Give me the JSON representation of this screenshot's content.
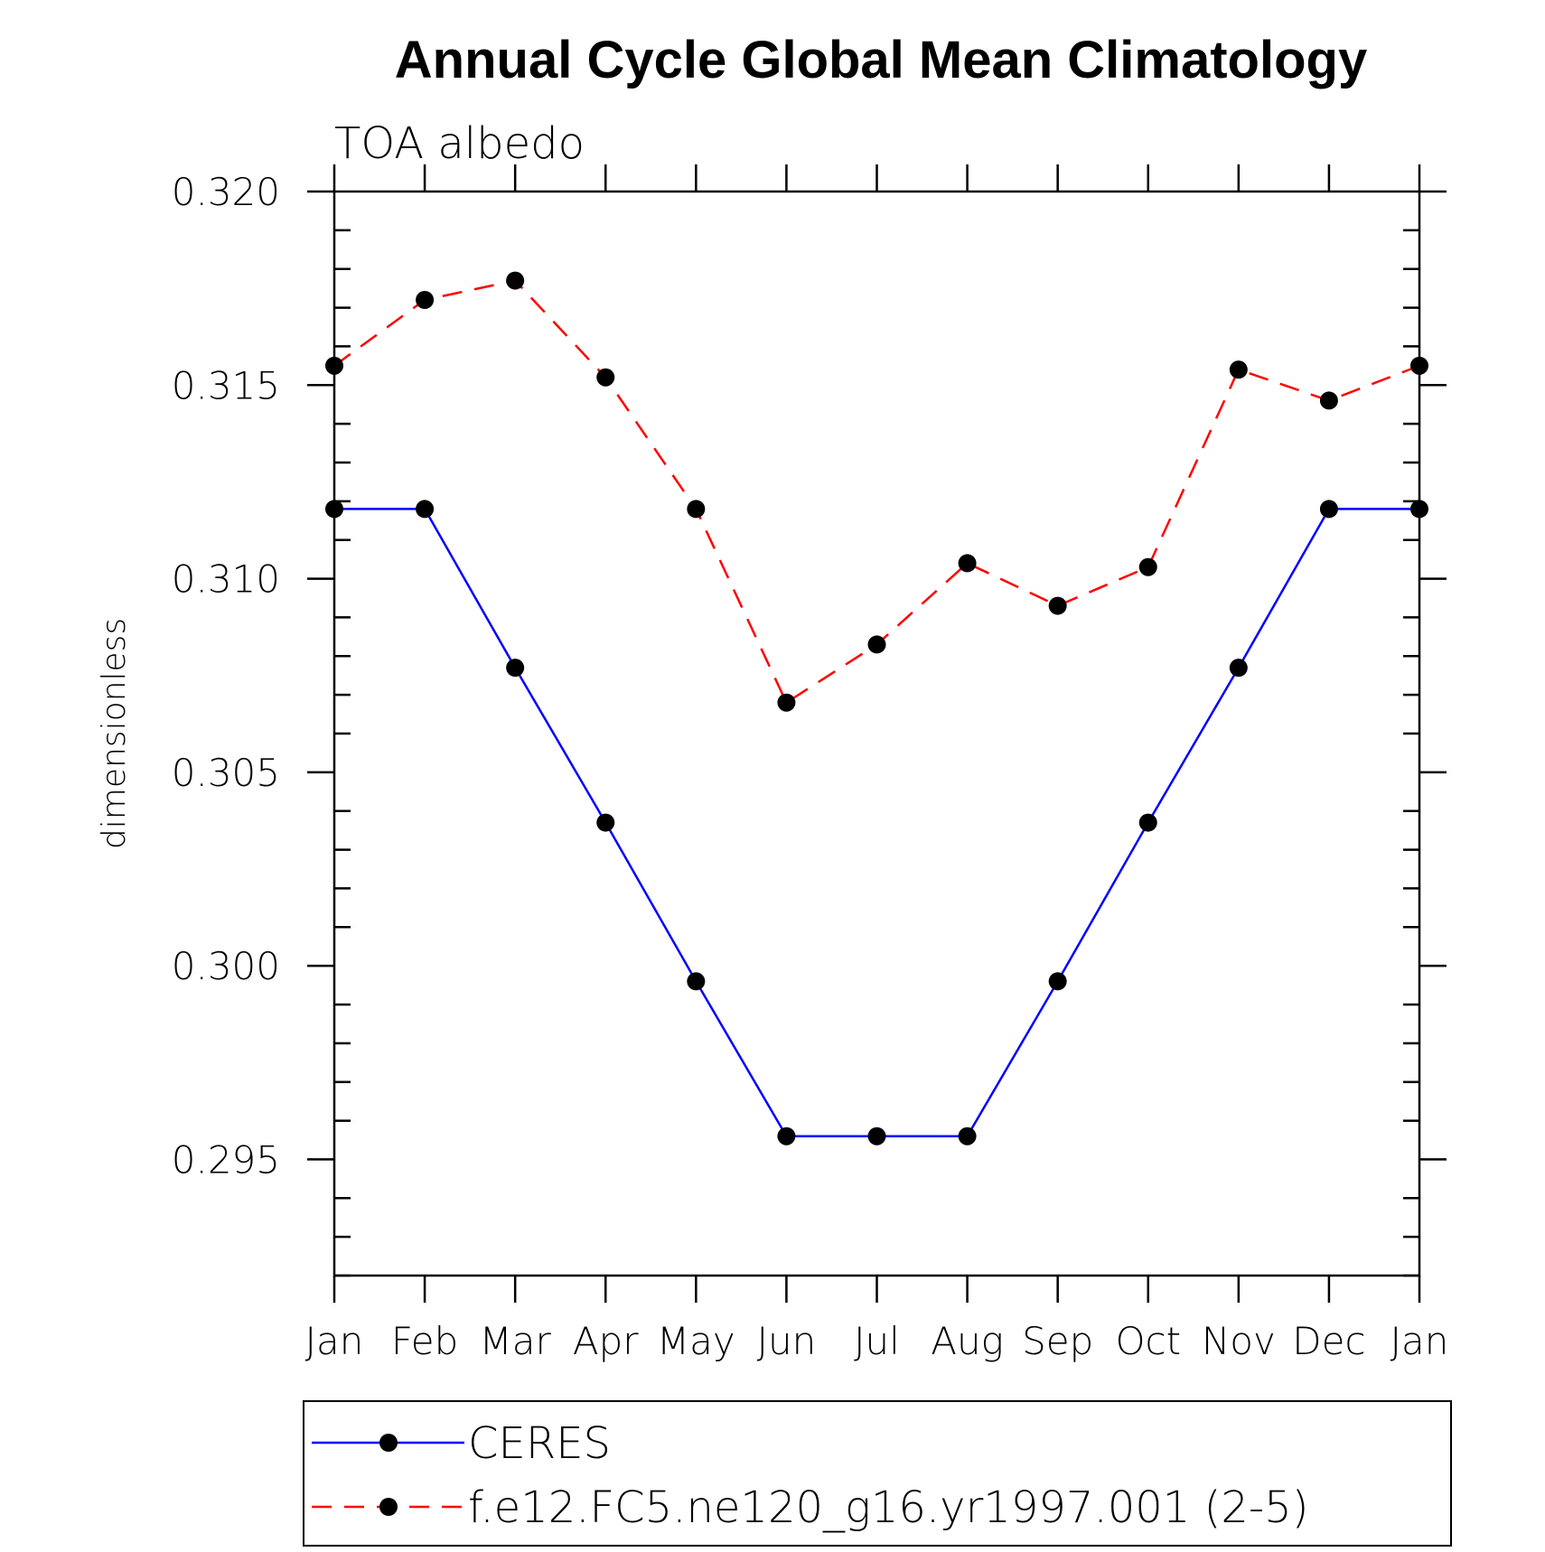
{
  "chart_data": {
    "type": "line",
    "title": "Annual Cycle Global Mean Climatology",
    "subtitle": "TOA albedo",
    "xlabel": "",
    "ylabel": "dimensionless",
    "categories": [
      "Jan",
      "Feb",
      "Mar",
      "Apr",
      "May",
      "Jun",
      "Jul",
      "Aug",
      "Sep",
      "Oct",
      "Nov",
      "Dec",
      "Jan"
    ],
    "ylim": [
      0.292,
      0.32
    ],
    "yticks": [
      "0.320",
      "0.315",
      "0.310",
      "0.305",
      "0.300",
      "0.295"
    ],
    "ytick_values": [
      0.32,
      0.315,
      0.31,
      0.305,
      0.3,
      0.295
    ],
    "grid": false,
    "legend_position": "bottom",
    "series": [
      {
        "name": "CERES",
        "color": "#0000ff",
        "dash": "solid",
        "marker": "filled-circle",
        "values": [
          0.3118,
          0.3118,
          0.3077,
          0.3037,
          0.2996,
          0.2956,
          0.2956,
          0.2956,
          0.2996,
          0.3037,
          0.3077,
          0.3118,
          0.3118
        ]
      },
      {
        "name": "f.e12.FC5.ne120_g16.yr1997.001 (2-5)",
        "color": "#ff0000",
        "dash": "dashed",
        "marker": "filled-circle",
        "values": [
          0.3155,
          0.3172,
          0.3177,
          0.3152,
          0.3118,
          0.3068,
          0.3083,
          0.3104,
          0.3093,
          0.3103,
          0.3154,
          0.3146,
          0.3155
        ]
      }
    ]
  }
}
